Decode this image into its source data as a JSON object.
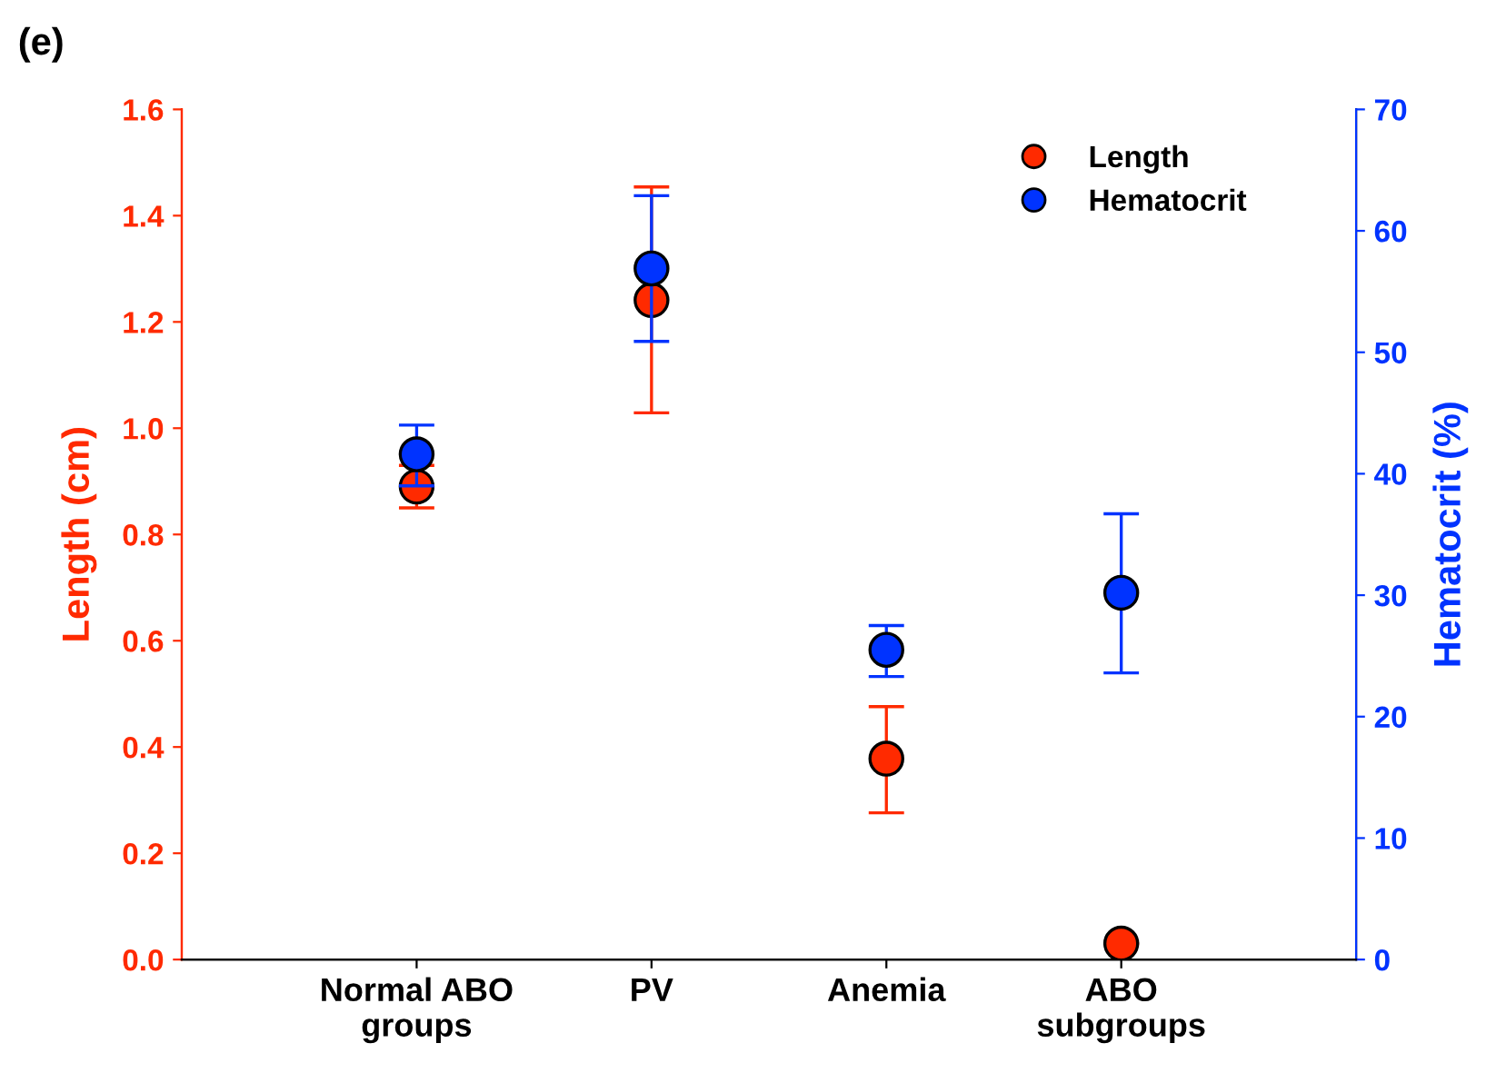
{
  "chart_data": {
    "type": "scatter",
    "title": "(e)",
    "ylabel": "Length (cm)",
    "y2label": "Hematocrit (%)",
    "categories": [
      "Normal ABO\ngroups",
      "PV",
      "Anemia",
      "ABO\nsubgroups"
    ],
    "series": [
      {
        "name": "Length",
        "color": "#ff2a00",
        "values": [
          0.89,
          1.241,
          0.378,
          0.03
        ],
        "errors": [
          0.04,
          [
            1.029,
            1.454
          ],
          [
            0.276,
            0.476
          ],
          null
        ]
      },
      {
        "name": "Hematocrit",
        "color": "#0033ff",
        "axis": "y2",
        "values": [
          41.6,
          56.9,
          25.5,
          30.2
        ],
        "errors": [
          [
            39.0,
            44.0
          ],
          [
            50.9,
            62.9
          ],
          [
            23.3,
            27.5
          ],
          [
            23.6,
            36.7
          ]
        ]
      }
    ],
    "ylim": [
      0,
      1.6
    ],
    "yticks": [
      {
        "value": 0,
        "label": "0.0"
      },
      0.2,
      0.4,
      0.6,
      0.8,
      {
        "value": 1,
        "label": "1.0"
      },
      1.2,
      1.4,
      1.6
    ],
    "y2lim": [
      0,
      70
    ],
    "y2ticks": [
      0,
      10,
      20,
      30,
      40,
      50,
      60,
      70
    ],
    "marker": "circle",
    "legend": "top right",
    "grid": false
  }
}
